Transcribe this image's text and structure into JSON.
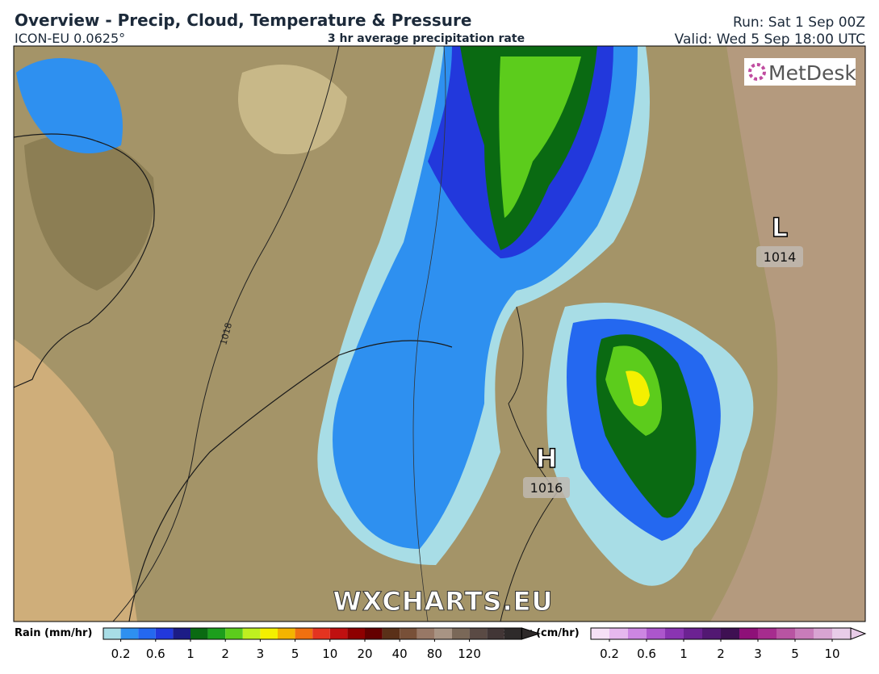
{
  "header": {
    "title": "Overview - Precip, Cloud, Temperature & Pressure",
    "model": "ICON-EU 0.0625°",
    "subtitle": "3 hr average precipitation rate",
    "run": "Run: Sat 1 Sep 00Z",
    "valid": "Valid: Wed 5 Sep 18:00 UTC"
  },
  "map": {
    "logo": "MetDesk",
    "watermark": "WXCHARTS.EU",
    "isobar_label": "1018",
    "pressure_centers": [
      {
        "letter": "L",
        "value": 1014
      },
      {
        "letter": "H",
        "value": 1016
      }
    ]
  },
  "legend": {
    "rain": {
      "title": "Rain (mm/hr)",
      "ticks": [
        0.2,
        0.6,
        1,
        2,
        3,
        5,
        10,
        20,
        40,
        80,
        120
      ],
      "colors": [
        "#a8dde6",
        "#2e90f0",
        "#2468f0",
        "#2238dc",
        "#1c1c86",
        "#0a6a12",
        "#1c9e1c",
        "#5ccc1c",
        "#bff020",
        "#f4f000",
        "#f4b400",
        "#f07010",
        "#e43420",
        "#c01010",
        "#8e0000",
        "#640000",
        "#5a3018",
        "#785038",
        "#987866",
        "#a89484",
        "#7a6858",
        "#5a4a44",
        "#423636",
        "#2e2a2a"
      ]
    },
    "snow": {
      "title": "Snow (cm/hr)",
      "ticks": [
        0.2,
        0.6,
        1,
        2,
        3,
        5,
        10
      ],
      "colors": [
        "#f6e0f6",
        "#e6b8ee",
        "#cc86e2",
        "#ac56cc",
        "#8a34b2",
        "#6c2292",
        "#521872",
        "#3e1052",
        "#8e1078",
        "#a62c8e",
        "#b854a2",
        "#c87cba",
        "#d8a4d2",
        "#e8cce8"
      ]
    }
  }
}
